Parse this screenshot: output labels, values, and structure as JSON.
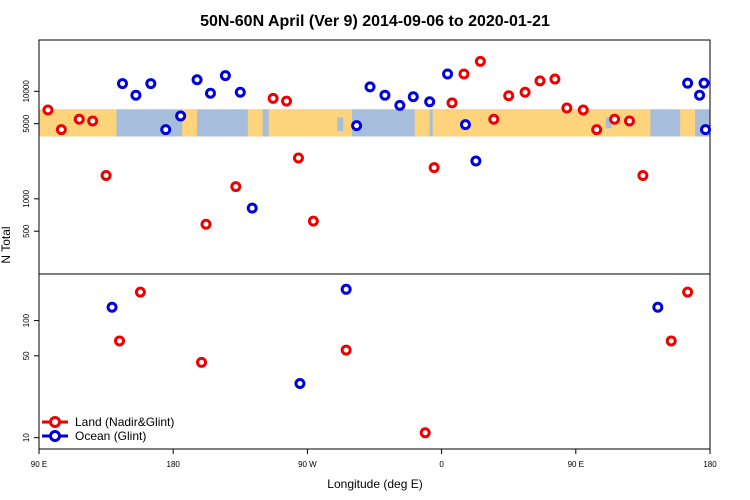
{
  "chart_data": {
    "type": "scatter",
    "title": "50N-60N April (Ver 9)   2014-09-06 to 2020-01-21",
    "xlabel": "Longitude (deg E)",
    "ylabel": "N Total",
    "xlim": [
      90,
      540
    ],
    "x_scale": "longitude-wrapped",
    "x_ticks": [
      {
        "value": 90,
        "label": "90 E"
      },
      {
        "value": 180,
        "label": "180"
      },
      {
        "value": 270,
        "label": "90 W"
      },
      {
        "value": 360,
        "label": "0"
      },
      {
        "value": 450,
        "label": "90 E"
      },
      {
        "value": 540,
        "label": "180"
      }
    ],
    "y_scale": "log",
    "panels": [
      {
        "name": "upper",
        "ylim": [
          200,
          30000
        ],
        "y_ticks": [
          {
            "value": 500,
            "label": "500"
          },
          {
            "value": 1000,
            "label": "1000"
          },
          {
            "value": 5000,
            "label": "5000"
          },
          {
            "value": 10000,
            "label": "10000"
          }
        ],
        "land_band": [
          3800,
          6800
        ]
      },
      {
        "name": "lower",
        "ylim": [
          8,
          250
        ],
        "y_ticks": [
          {
            "value": 10,
            "label": "10"
          },
          {
            "value": 50,
            "label": "50"
          },
          {
            "value": 100,
            "label": "100"
          }
        ]
      }
    ],
    "grid": false,
    "legend_position": "bottom-left",
    "series": [
      {
        "name": "Land (Nadir&Glint)",
        "color": "#ee0000",
        "points": [
          {
            "x": 96,
            "y": 6700,
            "panel": "upper"
          },
          {
            "x": 105,
            "y": 4400,
            "panel": "upper"
          },
          {
            "x": 117,
            "y": 5500,
            "panel": "upper"
          },
          {
            "x": 126,
            "y": 5300,
            "panel": "upper"
          },
          {
            "x": 135,
            "y": 1650,
            "panel": "upper"
          },
          {
            "x": 202,
            "y": 580,
            "panel": "upper"
          },
          {
            "x": 222,
            "y": 1300,
            "panel": "upper"
          },
          {
            "x": 247,
            "y": 8600,
            "panel": "upper"
          },
          {
            "x": 256,
            "y": 8100,
            "panel": "upper"
          },
          {
            "x": 264,
            "y": 2400,
            "panel": "upper"
          },
          {
            "x": 274,
            "y": 620,
            "panel": "upper"
          },
          {
            "x": 355,
            "y": 1950,
            "panel": "upper"
          },
          {
            "x": 367,
            "y": 7800,
            "panel": "upper"
          },
          {
            "x": 375,
            "y": 14500,
            "panel": "upper"
          },
          {
            "x": 386,
            "y": 19000,
            "panel": "upper"
          },
          {
            "x": 395,
            "y": 5500,
            "panel": "upper"
          },
          {
            "x": 405,
            "y": 9100,
            "panel": "upper"
          },
          {
            "x": 416,
            "y": 9800,
            "panel": "upper"
          },
          {
            "x": 426,
            "y": 12500,
            "panel": "upper"
          },
          {
            "x": 436,
            "y": 13000,
            "panel": "upper"
          },
          {
            "x": 444,
            "y": 7000,
            "panel": "upper"
          },
          {
            "x": 455,
            "y": 6700,
            "panel": "upper"
          },
          {
            "x": 464,
            "y": 4400,
            "panel": "upper"
          },
          {
            "x": 476,
            "y": 5500,
            "panel": "upper"
          },
          {
            "x": 486,
            "y": 5300,
            "panel": "upper"
          },
          {
            "x": 495,
            "y": 1650,
            "panel": "upper"
          },
          {
            "x": 144,
            "y": 67,
            "panel": "lower"
          },
          {
            "x": 158,
            "y": 175,
            "panel": "lower"
          },
          {
            "x": 199,
            "y": 44,
            "panel": "lower"
          },
          {
            "x": 296,
            "y": 56,
            "panel": "lower"
          },
          {
            "x": 349,
            "y": 11,
            "panel": "lower"
          },
          {
            "x": 514,
            "y": 67,
            "panel": "lower"
          },
          {
            "x": 525,
            "y": 175,
            "panel": "lower"
          }
        ]
      },
      {
        "name": "Ocean (Glint)",
        "color": "#0000dd",
        "points": [
          {
            "x": 146,
            "y": 11800,
            "panel": "upper"
          },
          {
            "x": 155,
            "y": 9200,
            "panel": "upper"
          },
          {
            "x": 165,
            "y": 11800,
            "panel": "upper"
          },
          {
            "x": 175,
            "y": 4400,
            "panel": "upper"
          },
          {
            "x": 185,
            "y": 5900,
            "panel": "upper"
          },
          {
            "x": 196,
            "y": 12800,
            "panel": "upper"
          },
          {
            "x": 205,
            "y": 9600,
            "panel": "upper"
          },
          {
            "x": 215,
            "y": 14000,
            "panel": "upper"
          },
          {
            "x": 225,
            "y": 9800,
            "panel": "upper"
          },
          {
            "x": 233,
            "y": 820,
            "panel": "upper"
          },
          {
            "x": 303,
            "y": 4800,
            "panel": "upper"
          },
          {
            "x": 312,
            "y": 11000,
            "panel": "upper"
          },
          {
            "x": 322,
            "y": 9200,
            "panel": "upper"
          },
          {
            "x": 332,
            "y": 7400,
            "panel": "upper"
          },
          {
            "x": 341,
            "y": 8900,
            "panel": "upper"
          },
          {
            "x": 352,
            "y": 8000,
            "panel": "upper"
          },
          {
            "x": 364,
            "y": 14500,
            "panel": "upper"
          },
          {
            "x": 376,
            "y": 4900,
            "panel": "upper"
          },
          {
            "x": 383,
            "y": 2250,
            "panel": "upper"
          },
          {
            "x": 525,
            "y": 11900,
            "panel": "upper"
          },
          {
            "x": 533,
            "y": 9200,
            "panel": "upper"
          },
          {
            "x": 536,
            "y": 11900,
            "panel": "upper"
          },
          {
            "x": 537,
            "y": 4400,
            "panel": "upper"
          },
          {
            "x": 139,
            "y": 130,
            "panel": "lower"
          },
          {
            "x": 265,
            "y": 29,
            "panel": "lower"
          },
          {
            "x": 296,
            "y": 185,
            "panel": "lower"
          },
          {
            "x": 505,
            "y": 130,
            "panel": "lower"
          }
        ]
      }
    ]
  }
}
